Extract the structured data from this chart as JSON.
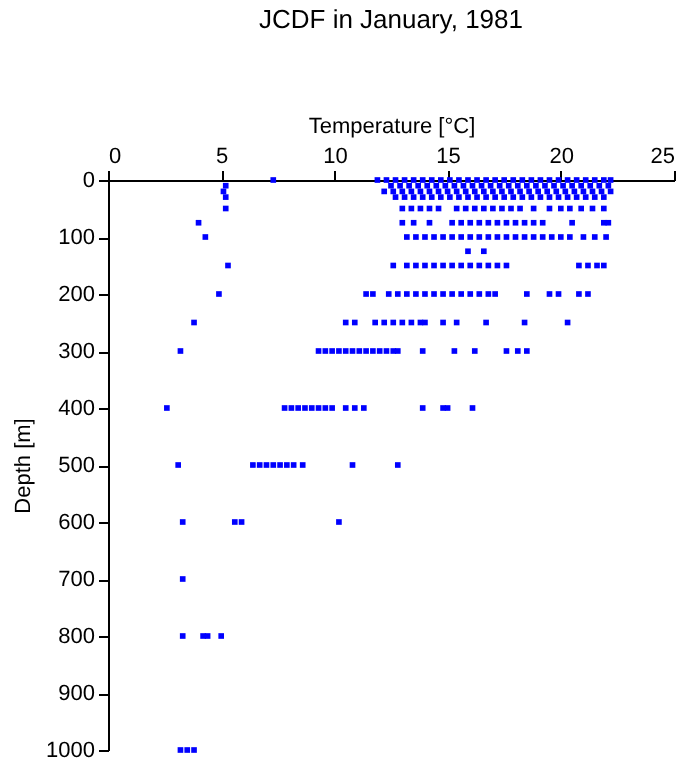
{
  "chart_data": {
    "type": "scatter",
    "title": "JCDF in January, 1981",
    "xlabel": "Temperature [°C]",
    "ylabel": "Depth [m]",
    "marker": "square",
    "xlim": [
      0,
      25
    ],
    "xticks": [
      0,
      5,
      10,
      15,
      20,
      25
    ],
    "ylim": [
      1000,
      0
    ],
    "yticks": [
      0,
      100,
      200,
      300,
      400,
      500,
      600,
      700,
      800,
      900,
      1000
    ],
    "series": [
      {
        "color": "#0000ff",
        "x": [
          7.3,
          11.9,
          12.3,
          12.7,
          13.1,
          13.5,
          13.9,
          14.3,
          14.7,
          15.1,
          15.5,
          15.9,
          16.3,
          16.7,
          17.1,
          17.5,
          17.9,
          18.3,
          18.7,
          19.1,
          19.5,
          19.9,
          20.3,
          20.7,
          21.1,
          21.5,
          21.9,
          22.2
        ],
        "values": [
          0,
          0,
          0,
          0,
          0,
          0,
          0,
          0,
          0,
          0,
          0,
          0,
          0,
          0,
          0,
          0,
          0,
          0,
          0,
          0,
          0,
          0,
          0,
          0,
          0,
          0,
          0,
          0
        ]
      },
      {
        "color": "#0000ff",
        "x": [
          5.2,
          12.5,
          12.9,
          13.3,
          13.7,
          14.1,
          14.5,
          14.9,
          15.3,
          15.7,
          16.1,
          16.5,
          16.9,
          17.3,
          17.7,
          18.1,
          18.5,
          18.9,
          19.3,
          19.7,
          20.1,
          20.5,
          20.9,
          21.3,
          21.7,
          22.1
        ],
        "values": [
          10,
          10,
          10,
          10,
          10,
          10,
          10,
          10,
          10,
          10,
          10,
          10,
          10,
          10,
          10,
          10,
          10,
          10,
          10,
          10,
          10,
          10,
          10,
          10,
          10,
          10
        ]
      },
      {
        "color": "#0000ff",
        "x": [
          5.1,
          12.2,
          12.6,
          13.0,
          13.4,
          13.8,
          14.2,
          14.6,
          15.0,
          15.4,
          15.8,
          16.2,
          16.6,
          17.0,
          17.4,
          17.8,
          18.2,
          18.6,
          19.0,
          19.4,
          19.8,
          20.2,
          20.6,
          21.0,
          21.4,
          21.8,
          22.2
        ],
        "values": [
          20,
          20,
          20,
          20,
          20,
          20,
          20,
          20,
          20,
          20,
          20,
          20,
          20,
          20,
          20,
          20,
          20,
          20,
          20,
          20,
          20,
          20,
          20,
          20,
          20,
          20,
          20
        ]
      },
      {
        "color": "#0000ff",
        "x": [
          5.2,
          12.7,
          13.1,
          13.5,
          13.9,
          14.3,
          14.7,
          15.1,
          15.5,
          15.9,
          16.3,
          16.7,
          17.1,
          17.5,
          17.9,
          18.3,
          18.7,
          19.1,
          19.5,
          19.9,
          20.3,
          20.7,
          21.1,
          21.5,
          21.9
        ],
        "values": [
          30,
          30,
          30,
          30,
          30,
          30,
          30,
          30,
          30,
          30,
          30,
          30,
          30,
          30,
          30,
          30,
          30,
          30,
          30,
          30,
          30,
          30,
          30,
          30,
          30
        ]
      },
      {
        "color": "#0000ff",
        "x": [
          5.2,
          13.0,
          13.4,
          13.8,
          14.2,
          14.6,
          15.4,
          15.8,
          16.2,
          16.6,
          17.0,
          17.4,
          17.8,
          18.2,
          18.8,
          19.5,
          20.0,
          20.4,
          20.9,
          21.4,
          21.9
        ],
        "values": [
          50,
          50,
          50,
          50,
          50,
          50,
          50,
          50,
          50,
          50,
          50,
          50,
          50,
          50,
          50,
          50,
          50,
          50,
          50,
          50,
          50
        ]
      },
      {
        "color": "#0000ff",
        "x": [
          4.0,
          13.0,
          13.5,
          14.2,
          15.2,
          15.6,
          16.0,
          16.4,
          16.8,
          17.2,
          17.6,
          18.0,
          18.4,
          18.8,
          19.2,
          20.5,
          21.9,
          22.1
        ],
        "values": [
          75,
          75,
          75,
          75,
          75,
          75,
          75,
          75,
          75,
          75,
          75,
          75,
          75,
          75,
          75,
          75,
          75,
          75
        ]
      },
      {
        "color": "#0000ff",
        "x": [
          4.3,
          13.2,
          13.6,
          14.0,
          14.4,
          14.8,
          15.2,
          15.6,
          16.0,
          16.4,
          16.8,
          17.2,
          17.6,
          18.0,
          18.4,
          18.8,
          19.2,
          19.6,
          20.0,
          20.4,
          21.0,
          21.5,
          22.0
        ],
        "values": [
          100,
          100,
          100,
          100,
          100,
          100,
          100,
          100,
          100,
          100,
          100,
          100,
          100,
          100,
          100,
          100,
          100,
          100,
          100,
          100,
          100,
          100,
          100
        ]
      },
      {
        "color": "#0000ff",
        "x": [
          15.9,
          16.6
        ],
        "values": [
          125,
          125
        ]
      },
      {
        "color": "#0000ff",
        "x": [
          5.3,
          12.6,
          13.2,
          13.6,
          14.0,
          14.4,
          14.8,
          15.2,
          15.6,
          16.0,
          16.4,
          16.8,
          17.2,
          17.6,
          20.8,
          21.2,
          21.6,
          21.9
        ],
        "values": [
          150,
          150,
          150,
          150,
          150,
          150,
          150,
          150,
          150,
          150,
          150,
          150,
          150,
          150,
          150,
          150,
          150,
          150
        ]
      },
      {
        "color": "#0000ff",
        "x": [
          4.9,
          11.4,
          11.7,
          12.4,
          12.8,
          13.2,
          13.6,
          14.0,
          14.4,
          14.8,
          15.2,
          15.6,
          16.0,
          16.4,
          16.8,
          17.1,
          18.5,
          19.5,
          19.9,
          20.8,
          21.2
        ],
        "values": [
          200,
          200,
          200,
          200,
          200,
          200,
          200,
          200,
          200,
          200,
          200,
          200,
          200,
          200,
          200,
          200,
          200,
          200,
          200,
          200,
          200
        ]
      },
      {
        "color": "#0000ff",
        "x": [
          3.8,
          10.5,
          10.9,
          11.8,
          12.2,
          12.6,
          13.0,
          13.4,
          13.8,
          14.0,
          14.8,
          15.4,
          16.7,
          18.4,
          20.3
        ],
        "values": [
          250,
          250,
          250,
          250,
          250,
          250,
          250,
          250,
          250,
          250,
          250,
          250,
          250,
          250,
          250
        ]
      },
      {
        "color": "#0000ff",
        "x": [
          3.2,
          9.3,
          9.6,
          9.9,
          10.2,
          10.5,
          10.8,
          11.1,
          11.4,
          11.7,
          12.0,
          12.3,
          12.6,
          12.8,
          13.9,
          15.3,
          16.2,
          17.6,
          18.1,
          18.5
        ],
        "values": [
          300,
          300,
          300,
          300,
          300,
          300,
          300,
          300,
          300,
          300,
          300,
          300,
          300,
          300,
          300,
          300,
          300,
          300,
          300,
          300
        ]
      },
      {
        "color": "#0000ff",
        "x": [
          2.6,
          7.8,
          8.1,
          8.4,
          8.7,
          9.0,
          9.3,
          9.6,
          9.9,
          10.5,
          10.9,
          11.3,
          13.9,
          14.8,
          15.0,
          16.1
        ],
        "values": [
          400,
          400,
          400,
          400,
          400,
          400,
          400,
          400,
          400,
          400,
          400,
          400,
          400,
          400,
          400,
          400
        ]
      },
      {
        "color": "#0000ff",
        "x": [
          3.1,
          6.4,
          6.7,
          7.0,
          7.3,
          7.6,
          7.9,
          8.2,
          8.6,
          10.8,
          12.8
        ],
        "values": [
          500,
          500,
          500,
          500,
          500,
          500,
          500,
          500,
          500,
          500,
          500
        ]
      },
      {
        "color": "#0000ff",
        "x": [
          3.3,
          5.6,
          5.9,
          10.2
        ],
        "values": [
          600,
          600,
          600,
          600
        ]
      },
      {
        "color": "#0000ff",
        "x": [
          3.3
        ],
        "values": [
          700
        ]
      },
      {
        "color": "#0000ff",
        "x": [
          3.3,
          4.2,
          4.4,
          5.0
        ],
        "values": [
          800,
          800,
          800,
          800
        ]
      },
      {
        "color": "#0000ff",
        "x": [
          3.2,
          3.5,
          3.8
        ],
        "values": [
          1000,
          1000,
          1000
        ]
      }
    ]
  }
}
